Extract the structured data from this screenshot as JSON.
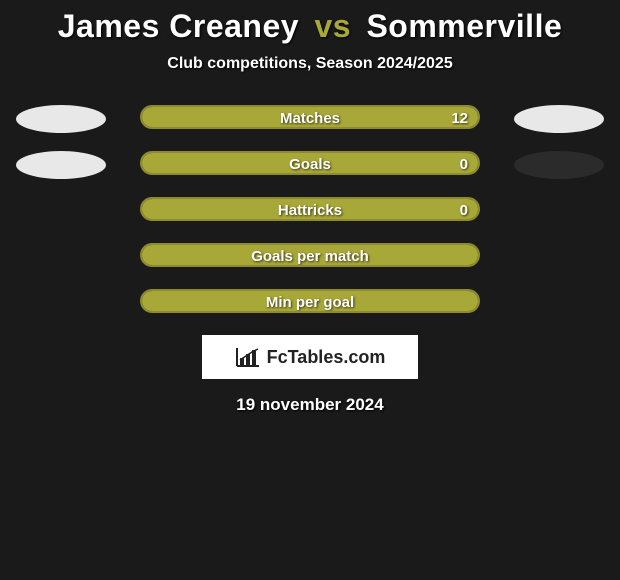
{
  "title": {
    "player1": "James Creaney",
    "vs": "vs",
    "player2": "Sommerville"
  },
  "subtitle": "Club competitions, Season 2024/2025",
  "colors": {
    "bar_fill": "#a8a838",
    "bar_border": "#8c8c2e",
    "oval_white": "#e8e8e8",
    "oval_dark": "#2b2b2b",
    "title_accent": "#a8a838"
  },
  "bars": [
    {
      "label": "Matches",
      "value": "12",
      "fill_pct": 100,
      "show_left_oval": true,
      "left_oval_color": "#e8e8e8",
      "show_right_oval": true,
      "right_oval_color": "#e8e8e8"
    },
    {
      "label": "Goals",
      "value": "0",
      "fill_pct": 100,
      "show_left_oval": true,
      "left_oval_color": "#e8e8e8",
      "show_right_oval": true,
      "right_oval_color": "#2b2b2b"
    },
    {
      "label": "Hattricks",
      "value": "0",
      "fill_pct": 100,
      "show_left_oval": false,
      "show_right_oval": false
    },
    {
      "label": "Goals per match",
      "value": "",
      "fill_pct": 100,
      "show_left_oval": false,
      "show_right_oval": false
    },
    {
      "label": "Min per goal",
      "value": "",
      "fill_pct": 100,
      "show_left_oval": false,
      "show_right_oval": false
    }
  ],
  "logo_text": "FcTables.com",
  "date": "19 november 2024"
}
